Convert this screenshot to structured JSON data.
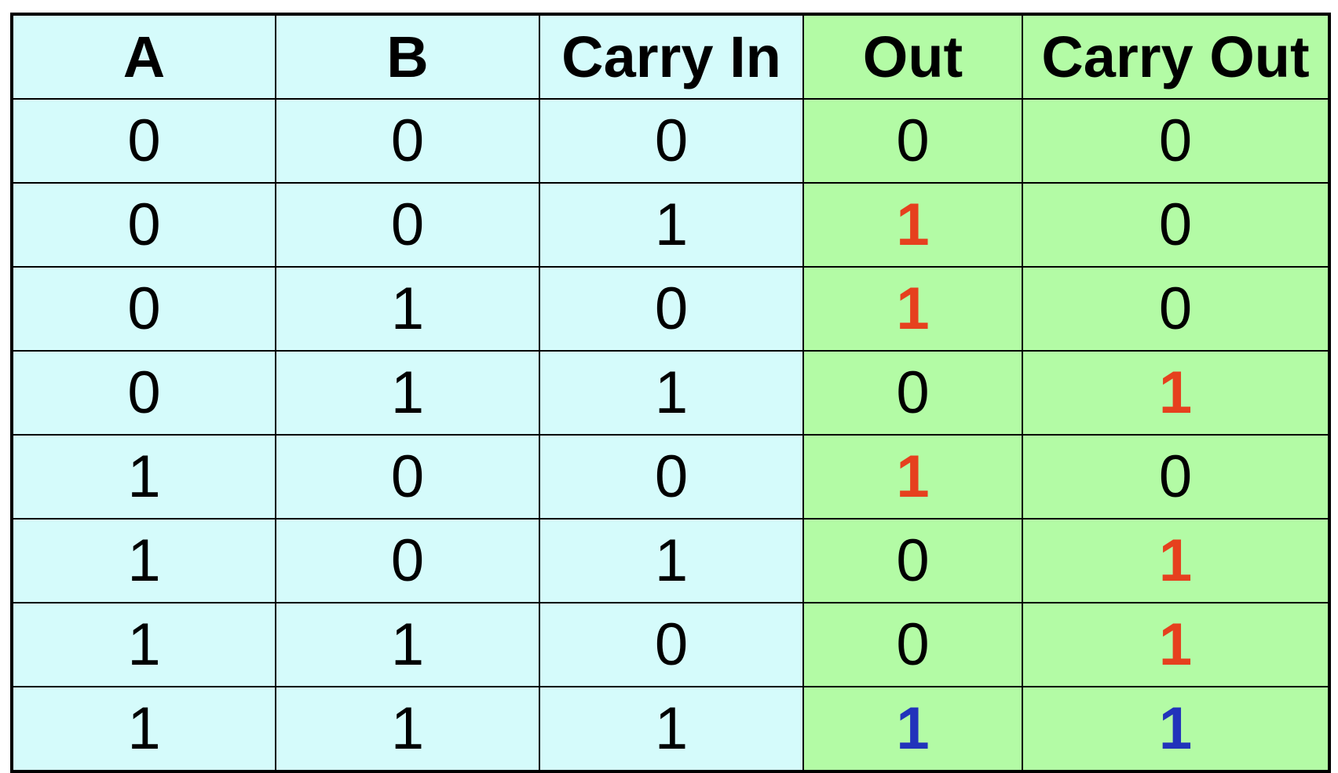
{
  "table": {
    "headers": [
      "A",
      "B",
      "Carry In",
      "Out",
      "Carry Out"
    ],
    "rows": [
      [
        "0",
        "0",
        "0",
        "0",
        "0"
      ],
      [
        "0",
        "0",
        "1",
        "1",
        "0"
      ],
      [
        "0",
        "1",
        "0",
        "1",
        "0"
      ],
      [
        "0",
        "1",
        "1",
        "0",
        "1"
      ],
      [
        "1",
        "0",
        "0",
        "1",
        "0"
      ],
      [
        "1",
        "0",
        "1",
        "0",
        "1"
      ],
      [
        "1",
        "1",
        "0",
        "0",
        "1"
      ],
      [
        "1",
        "1",
        "1",
        "1",
        "1"
      ]
    ],
    "highlight": [
      [
        "",
        "",
        "",
        "",
        ""
      ],
      [
        "",
        "",
        "",
        "red",
        ""
      ],
      [
        "",
        "",
        "",
        "red",
        ""
      ],
      [
        "",
        "",
        "",
        "",
        "red"
      ],
      [
        "",
        "",
        "",
        "red",
        ""
      ],
      [
        "",
        "",
        "",
        "",
        "red"
      ],
      [
        "",
        "",
        "",
        "",
        "red"
      ],
      [
        "",
        "",
        "",
        "blue",
        "blue"
      ]
    ]
  },
  "colors": {
    "input_column_bg": "#d5fbfb",
    "output_column_bg": "#b3fba5",
    "border": "#000000",
    "text": "#000000",
    "highlight_red": "#e6401e",
    "highlight_blue": "#2233bb"
  }
}
